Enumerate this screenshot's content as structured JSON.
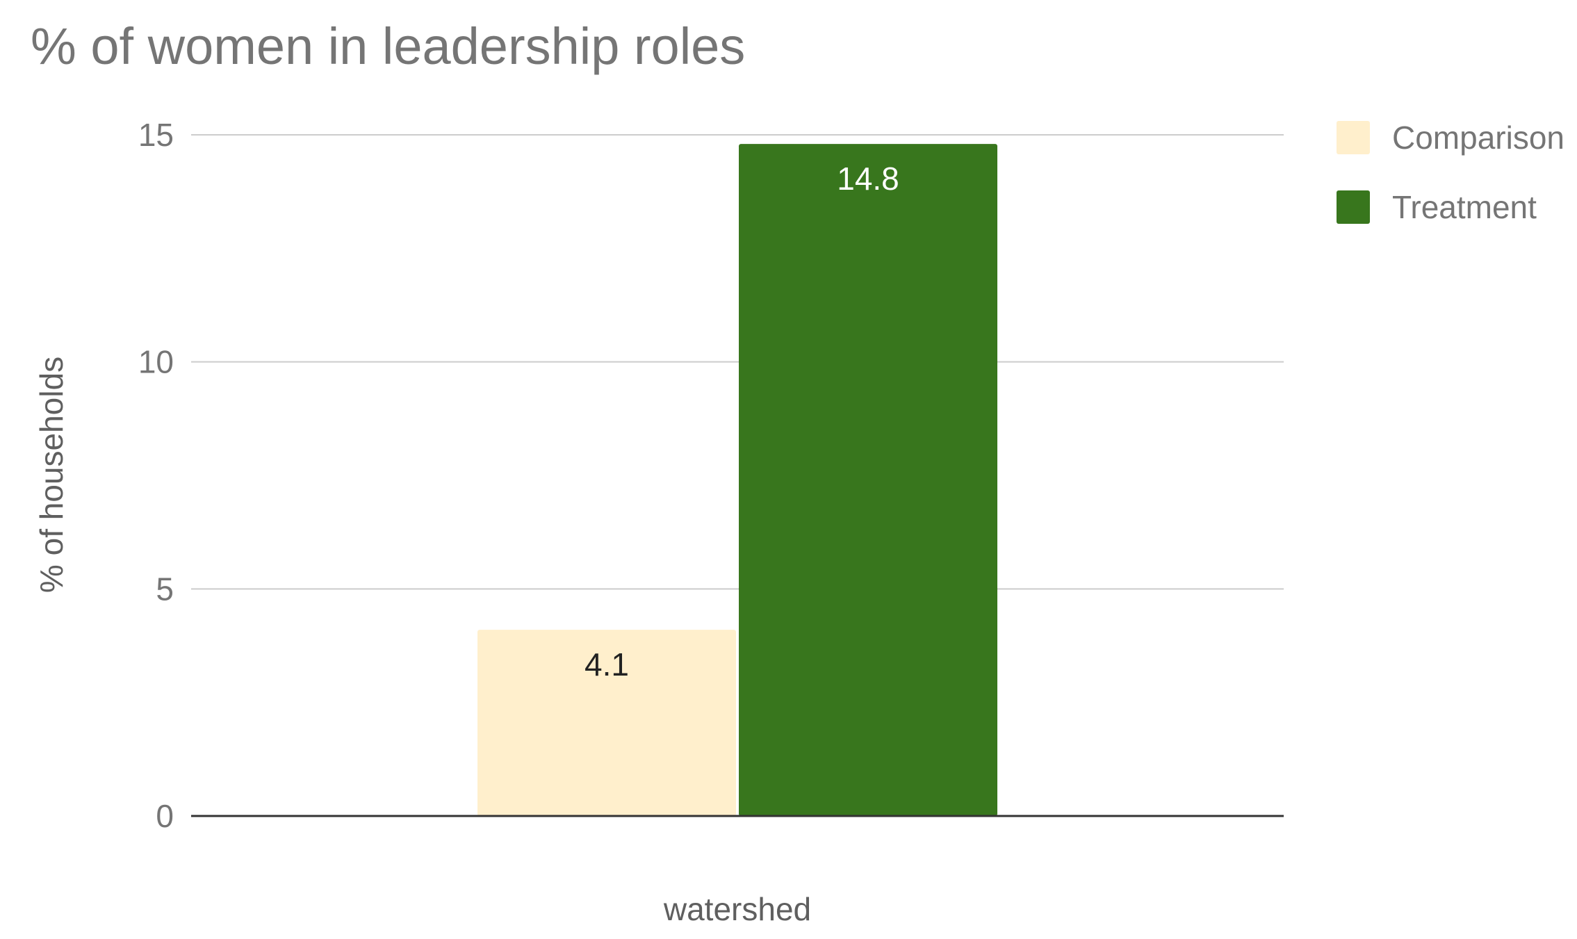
{
  "chart_data": {
    "type": "bar",
    "title": "% of women in leadership roles",
    "xlabel": "watershed",
    "ylabel": "% of households",
    "categories": [
      "watershed"
    ],
    "ylim": [
      0,
      15
    ],
    "yticks": [
      0,
      5,
      10,
      15
    ],
    "grid": true,
    "legend_position": "top-right",
    "series": [
      {
        "name": "Comparison",
        "values": [
          4.1
        ],
        "color": "#FFEFCC",
        "label_color": "#222222"
      },
      {
        "name": "Treatment",
        "values": [
          14.8
        ],
        "color": "#38761D",
        "label_color": "#FFFFFF"
      }
    ]
  }
}
